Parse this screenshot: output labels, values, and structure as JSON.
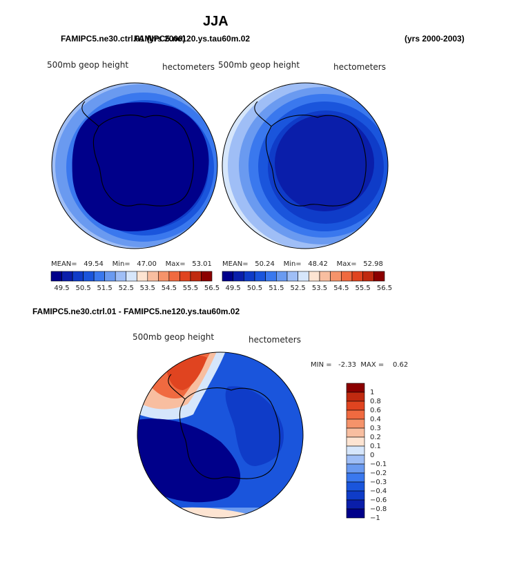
{
  "page": {
    "title": "JJA",
    "top_left_header": "FAMIPC5.ne30.ctrl.01 (yrs 2000)",
    "top_overlap_header": "FAMIPC5.ne120.ys.tau60m.02",
    "top_right_header": "(yrs 2000-2003)",
    "diff_header": "FAMIPC5.ne30.ctrl.01 - FAMIPC5.ne120.ys.tau60m.02"
  },
  "colors": {
    "abs_scale": [
      "#00008a",
      "#0a1eaa",
      "#0f3cc8",
      "#1a55dc",
      "#3a78ee",
      "#6a9af0",
      "#9fbef6",
      "#d6e6fb",
      "#fde4d2",
      "#f8bea0",
      "#f5936a",
      "#f06a40",
      "#e04420",
      "#c02a10",
      "#8b0000"
    ],
    "diff_scale": [
      "#00008a",
      "#0a1eaa",
      "#0f3cc8",
      "#1a55dc",
      "#3a78ee",
      "#6a9af0",
      "#9fbef6",
      "#d6e6fb",
      "#fde4d2",
      "#f8bea0",
      "#f5936a",
      "#f06a40",
      "#e04420",
      "#c02a10",
      "#8b0000"
    ]
  },
  "chart_data": [
    {
      "type": "heatmap",
      "title": "500mb geop height",
      "units": "hectometers",
      "stats": {
        "mean_label": "MEAN=",
        "mean": "49.54",
        "min_label": "Min=",
        "min": "47.00",
        "max_label": "Max=",
        "max": "53.01"
      },
      "levels": [
        "49.5",
        "50.5",
        "51.5",
        "52.5",
        "53.5",
        "54.5",
        "55.5",
        "56.5"
      ]
    },
    {
      "type": "heatmap",
      "title": "500mb geop height",
      "units": "hectometers",
      "stats": {
        "mean_label": "MEAN=",
        "mean": "50.24",
        "min_label": "Min=",
        "min": "48.42",
        "max_label": "Max=",
        "max": "52.98"
      },
      "levels": [
        "49.5",
        "50.5",
        "51.5",
        "52.5",
        "53.5",
        "54.5",
        "55.5",
        "56.5"
      ]
    },
    {
      "type": "heatmap",
      "title": "500mb geop height",
      "units": "hectometers",
      "stats": {
        "min_label": "MIN =",
        "min": "-2.33",
        "max_label": "MAX =",
        "max": "0.62"
      },
      "levels": [
        "1",
        "0.8",
        "0.6",
        "0.4",
        "0.3",
        "0.2",
        "0.1",
        "0",
        "−0.1",
        "−0.2",
        "−0.3",
        "−0.4",
        "−0.6",
        "−0.8",
        "−1"
      ]
    }
  ]
}
